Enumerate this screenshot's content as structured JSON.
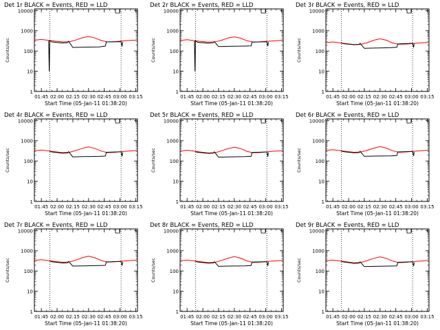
{
  "chart_data": [
    {
      "type": "line",
      "title": "Det 1r BLACK = Events, RED = LLD",
      "xlabel": "Start Time (05-Jan-11 01:38:20)",
      "ylabel": "Counts/sec",
      "yscale": "log",
      "ylim": [
        1,
        12000
      ],
      "xlim": [
        "01:38:20",
        "03:16:40"
      ],
      "xticks": [
        "01:45",
        "02:00",
        "02:15",
        "02:30",
        "02:45",
        "03:00",
        "03:15"
      ],
      "yticks": [
        "1",
        "10",
        "100",
        "1000",
        "10000"
      ],
      "grid": false,
      "vlines_dotted": [
        "01:53:00",
        "03:01:00"
      ],
      "series": [
        {
          "name": "LLD",
          "color": "#ff0000",
          "x": [
            "01:38:20",
            "01:45",
            "01:55",
            "02:05",
            "02:12",
            "02:18",
            "02:24",
            "02:30",
            "02:36",
            "02:42",
            "02:48",
            "02:55",
            "03:05",
            "03:16"
          ],
          "values": [
            340,
            370,
            320,
            280,
            290,
            350,
            450,
            520,
            440,
            330,
            280,
            290,
            320,
            350
          ]
        },
        {
          "name": "Events",
          "color": "#000000",
          "x": [
            "01:52",
            "01:52:30",
            "01:53",
            "01:55",
            "02:05",
            "02:10",
            "02:11",
            "02:15",
            "02:25",
            "02:40",
            "02:46",
            "02:47",
            "03:01",
            "03:02",
            "03:02:30"
          ],
          "values": [
            320,
            10,
            330,
            280,
            250,
            260,
            300,
            150,
            155,
            160,
            175,
            280,
            290,
            170,
            280
          ]
        }
      ]
    },
    {
      "type": "line",
      "title": "Det 2r BLACK = Events, RED = LLD",
      "xlabel": "Start Time (05-Jan-11 01:38:20)",
      "ylabel": "Counts/sec",
      "yscale": "log",
      "ylim": [
        1,
        12000
      ],
      "xlim": [
        "01:38:20",
        "03:16:40"
      ],
      "xticks": [
        "01:45",
        "02:00",
        "02:15",
        "02:30",
        "02:45",
        "03:00",
        "03:15"
      ],
      "yticks": [
        "1",
        "10",
        "100",
        "1000",
        "10000"
      ],
      "grid": false,
      "vlines_dotted": [
        "01:53:00",
        "03:01:00"
      ],
      "series": [
        {
          "name": "LLD",
          "color": "#ff0000",
          "x": [
            "01:38:20",
            "01:45",
            "01:55",
            "02:05",
            "02:12",
            "02:18",
            "02:24",
            "02:30",
            "02:36",
            "02:42",
            "02:48",
            "02:55",
            "03:05",
            "03:16"
          ],
          "values": [
            330,
            360,
            310,
            275,
            285,
            340,
            440,
            500,
            430,
            320,
            275,
            285,
            310,
            340
          ]
        },
        {
          "name": "Events",
          "color": "#000000",
          "x": [
            "01:52",
            "01:52:30",
            "01:53",
            "01:55",
            "02:05",
            "02:10",
            "02:11",
            "02:15",
            "02:25",
            "02:40",
            "02:46",
            "02:47",
            "03:01",
            "03:02",
            "03:02:30"
          ],
          "values": [
            310,
            10,
            320,
            270,
            245,
            255,
            290,
            165,
            170,
            175,
            180,
            275,
            285,
            175,
            275
          ]
        }
      ]
    },
    {
      "type": "line",
      "title": "Det 3r BLACK = Events, RED = LLD",
      "xlabel": "Start Time (05-Jan-11 01:38:20)",
      "ylabel": "Counts/sec",
      "yscale": "log",
      "ylim": [
        1,
        12000
      ],
      "xlim": [
        "01:38:20",
        "03:16:40"
      ],
      "xticks": [
        "01:45",
        "02:00",
        "02:15",
        "02:30",
        "02:45",
        "03:00",
        "03:15"
      ],
      "yticks": [
        "1",
        "10",
        "100",
        "1000",
        "10000"
      ],
      "grid": false,
      "vlines_dotted": [
        "01:53:00",
        "03:01:00"
      ],
      "series": [
        {
          "name": "LLD",
          "color": "#ff0000",
          "x": [
            "01:38:20",
            "01:45",
            "01:55",
            "02:05",
            "02:12",
            "02:18",
            "02:24",
            "02:30",
            "02:36",
            "02:42",
            "02:48",
            "02:55",
            "03:05",
            "03:16"
          ],
          "values": [
            260,
            280,
            240,
            210,
            215,
            260,
            340,
            400,
            340,
            250,
            215,
            220,
            245,
            265
          ]
        },
        {
          "name": "Events",
          "color": "#000000",
          "x": [
            "01:53",
            "01:55",
            "02:05",
            "02:10",
            "02:11",
            "02:15",
            "02:25",
            "02:40",
            "02:46",
            "02:47",
            "03:01",
            "03:02",
            "03:02:30"
          ],
          "values": [
            250,
            230,
            205,
            210,
            240,
            135,
            140,
            145,
            155,
            225,
            240,
            150,
            230
          ]
        }
      ]
    },
    {
      "type": "line",
      "title": "Det 4r BLACK = Events, RED = LLD",
      "xlabel": "Start Time (05-Jan-11 01:38:20)",
      "ylabel": "Counts/sec",
      "yscale": "log",
      "ylim": [
        1,
        12000
      ],
      "xlim": [
        "01:38:20",
        "03:16:40"
      ],
      "xticks": [
        "01:45",
        "02:00",
        "02:15",
        "02:30",
        "02:45",
        "03:00",
        "03:15"
      ],
      "yticks": [
        "1",
        "10",
        "100",
        "1000",
        "10000"
      ],
      "grid": false,
      "vlines_dotted": [
        "01:53:00",
        "03:01:00"
      ],
      "series": [
        {
          "name": "LLD",
          "color": "#ff0000",
          "x": [
            "01:38:20",
            "01:45",
            "01:55",
            "02:05",
            "02:12",
            "02:18",
            "02:24",
            "02:30",
            "02:36",
            "02:42",
            "02:48",
            "02:55",
            "03:05",
            "03:16"
          ],
          "values": [
            320,
            350,
            300,
            260,
            270,
            330,
            420,
            500,
            420,
            310,
            260,
            270,
            300,
            330
          ]
        },
        {
          "name": "Events",
          "color": "#000000",
          "x": [
            "01:53",
            "01:55",
            "02:05",
            "02:10",
            "02:11",
            "02:15",
            "02:25",
            "02:40",
            "02:46",
            "02:47",
            "03:01",
            "03:02",
            "03:02:30"
          ],
          "values": [
            300,
            280,
            245,
            250,
            290,
            160,
            165,
            170,
            175,
            270,
            285,
            170,
            270
          ]
        }
      ]
    },
    {
      "type": "line",
      "title": "Det 5r BLACK = Events, RED = LLD",
      "xlabel": "Start Time (05-Jan-11 01:38:20)",
      "ylabel": "Counts/sec",
      "yscale": "log",
      "ylim": [
        1,
        12000
      ],
      "xlim": [
        "01:38:20",
        "03:16:40"
      ],
      "xticks": [
        "01:45",
        "02:00",
        "02:15",
        "02:30",
        "02:45",
        "03:00",
        "03:15"
      ],
      "yticks": [
        "1",
        "10",
        "100",
        "1000",
        "10000"
      ],
      "grid": false,
      "vlines_dotted": [
        "01:53:00",
        "03:01:00"
      ],
      "series": [
        {
          "name": "LLD",
          "color": "#ff0000",
          "x": [
            "01:38:20",
            "01:45",
            "01:55",
            "02:05",
            "02:12",
            "02:18",
            "02:24",
            "02:30",
            "02:36",
            "02:42",
            "02:48",
            "02:55",
            "03:05",
            "03:16"
          ],
          "values": [
            310,
            340,
            290,
            250,
            260,
            320,
            410,
            480,
            410,
            300,
            255,
            265,
            295,
            320
          ]
        },
        {
          "name": "Events",
          "color": "#000000",
          "x": [
            "01:53",
            "01:55",
            "02:05",
            "02:10",
            "02:11",
            "02:15",
            "02:25",
            "02:40",
            "02:46",
            "02:47",
            "03:01",
            "03:02",
            "03:02:30"
          ],
          "values": [
            290,
            270,
            240,
            245,
            285,
            155,
            160,
            165,
            170,
            265,
            280,
            165,
            265
          ]
        }
      ]
    },
    {
      "type": "line",
      "title": "Det 6r BLACK = Events, RED = LLD",
      "xlabel": "Start Time (05-Jan-11 01:38:20)",
      "ylabel": "Counts/sec",
      "yscale": "log",
      "ylim": [
        1,
        12000
      ],
      "xlim": [
        "01:38:20",
        "03:16:40"
      ],
      "xticks": [
        "01:45",
        "02:00",
        "02:15",
        "02:30",
        "02:45",
        "03:00",
        "03:15"
      ],
      "yticks": [
        "1",
        "10",
        "100",
        "1000",
        "10000"
      ],
      "grid": false,
      "vlines_dotted": [
        "01:53:00",
        "03:01:00"
      ],
      "series": [
        {
          "name": "LLD",
          "color": "#ff0000",
          "x": [
            "01:38:20",
            "01:45",
            "01:55",
            "02:05",
            "02:12",
            "02:18",
            "02:24",
            "02:30",
            "02:36",
            "02:42",
            "02:48",
            "02:55",
            "03:05",
            "03:16"
          ],
          "values": [
            330,
            360,
            310,
            270,
            280,
            340,
            430,
            510,
            430,
            320,
            270,
            280,
            310,
            340
          ]
        },
        {
          "name": "Events",
          "color": "#000000",
          "x": [
            "01:53",
            "01:55",
            "02:05",
            "02:10",
            "02:11",
            "02:15",
            "02:25",
            "02:40",
            "02:46",
            "02:47",
            "03:01",
            "03:02",
            "03:02:30"
          ],
          "values": [
            310,
            290,
            255,
            260,
            300,
            170,
            175,
            180,
            185,
            280,
            295,
            180,
            280
          ]
        }
      ]
    },
    {
      "type": "line",
      "title": "Det 7r BLACK = Events, RED = LLD",
      "xlabel": "Start Time (05-Jan-11 01:38:20)",
      "ylabel": "Counts/sec",
      "yscale": "log",
      "ylim": [
        1,
        12000
      ],
      "xlim": [
        "01:38:20",
        "03:16:40"
      ],
      "xticks": [
        "01:45",
        "02:00",
        "02:15",
        "02:30",
        "02:45",
        "03:00",
        "03:15"
      ],
      "yticks": [
        "1",
        "10",
        "100",
        "1000",
        "10000"
      ],
      "grid": false,
      "vlines_dotted": [
        "01:53:00",
        "03:01:00"
      ],
      "series": [
        {
          "name": "LLD",
          "color": "#ff0000",
          "x": [
            "01:38:20",
            "01:45",
            "01:55",
            "02:05",
            "02:12",
            "02:18",
            "02:24",
            "02:30",
            "02:36",
            "02:42",
            "02:48",
            "02:55",
            "03:05",
            "03:16"
          ],
          "values": [
            330,
            360,
            310,
            270,
            280,
            350,
            450,
            540,
            450,
            330,
            275,
            285,
            315,
            345
          ]
        },
        {
          "name": "Events",
          "color": "#000000",
          "x": [
            "01:53",
            "01:55",
            "02:05",
            "02:10",
            "02:11",
            "02:15",
            "02:25",
            "02:40",
            "02:46",
            "02:47",
            "03:01",
            "03:02",
            "03:02:30"
          ],
          "values": [
            310,
            285,
            250,
            255,
            295,
            175,
            180,
            185,
            190,
            280,
            295,
            185,
            280
          ]
        }
      ]
    },
    {
      "type": "line",
      "title": "Det 8r BLACK = Events, RED = LLD",
      "xlabel": "Start Time (05-Jan-11 01:38:20)",
      "ylabel": "Counts/sec",
      "yscale": "log",
      "ylim": [
        1,
        12000
      ],
      "xlim": [
        "01:38:20",
        "03:16:40"
      ],
      "xticks": [
        "01:45",
        "02:00",
        "02:15",
        "02:30",
        "02:45",
        "03:00",
        "03:15"
      ],
      "yticks": [
        "1",
        "10",
        "100",
        "1000",
        "10000"
      ],
      "grid": false,
      "vlines_dotted": [
        "01:53:00",
        "03:01:00"
      ],
      "series": [
        {
          "name": "LLD",
          "color": "#ff0000",
          "x": [
            "01:38:20",
            "01:45",
            "01:55",
            "02:05",
            "02:12",
            "02:18",
            "02:24",
            "02:30",
            "02:36",
            "02:42",
            "02:48",
            "02:55",
            "03:05",
            "03:16"
          ],
          "values": [
            320,
            350,
            300,
            260,
            270,
            335,
            430,
            510,
            430,
            315,
            265,
            275,
            305,
            335
          ]
        },
        {
          "name": "Events",
          "color": "#000000",
          "x": [
            "01:53",
            "01:55",
            "02:05",
            "02:10",
            "02:11",
            "02:15",
            "02:25",
            "02:40",
            "02:46",
            "02:47",
            "03:01",
            "03:02",
            "03:02:30"
          ],
          "values": [
            300,
            280,
            245,
            250,
            290,
            170,
            175,
            180,
            185,
            275,
            290,
            180,
            275
          ]
        }
      ]
    },
    {
      "type": "line",
      "title": "Det 9r BLACK = Events, RED = LLD",
      "xlabel": "Start Time (05-Jan-11 01:38:20)",
      "ylabel": "Counts/sec",
      "yscale": "log",
      "ylim": [
        1,
        12000
      ],
      "xlim": [
        "01:38:20",
        "03:16:40"
      ],
      "xticks": [
        "01:45",
        "02:00",
        "02:15",
        "02:30",
        "02:45",
        "03:00",
        "03:15"
      ],
      "yticks": [
        "1",
        "10",
        "100",
        "1000",
        "10000"
      ],
      "grid": false,
      "vlines_dotted": [
        "01:53:00",
        "03:01:00"
      ],
      "series": [
        {
          "name": "LLD",
          "color": "#ff0000",
          "x": [
            "01:38:20",
            "01:45",
            "01:55",
            "02:05",
            "02:12",
            "02:18",
            "02:24",
            "02:30",
            "02:36",
            "02:42",
            "02:48",
            "02:55",
            "03:05",
            "03:16"
          ],
          "values": [
            320,
            350,
            295,
            255,
            265,
            330,
            420,
            500,
            420,
            310,
            260,
            270,
            300,
            330
          ]
        },
        {
          "name": "Events",
          "color": "#000000",
          "x": [
            "01:53",
            "01:55",
            "02:05",
            "02:10",
            "02:11",
            "02:15",
            "02:25",
            "02:40",
            "02:46",
            "02:47",
            "03:01",
            "03:02",
            "03:02:30"
          ],
          "values": [
            300,
            280,
            240,
            245,
            285,
            165,
            170,
            175,
            180,
            270,
            285,
            175,
            270
          ]
        }
      ]
    }
  ]
}
